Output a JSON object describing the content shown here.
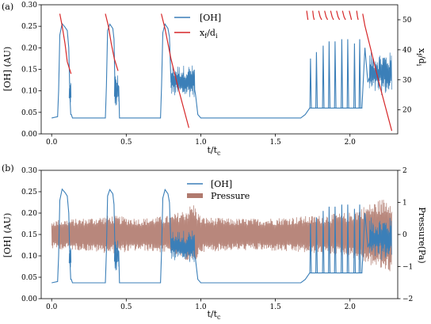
{
  "chart_data": [
    {
      "type": "line",
      "panel_label": "(a)",
      "xlabel": "t/t",
      "xlabel_sub": "c",
      "ylabel": "[OH] (AU)",
      "y2label": "x",
      "y2label_sub": "f",
      "y2label_tail": "/d",
      "y2label_sub2": "i",
      "xlim": [
        -0.07,
        2.32
      ],
      "ylim": [
        0.0,
        0.3
      ],
      "y2lim": [
        12,
        55
      ],
      "xticks": [
        0.0,
        0.5,
        1.0,
        1.5,
        2.0
      ],
      "xtick_labels": [
        "0.0",
        "0.5",
        "1.0",
        "1.5",
        "2.0"
      ],
      "yticks": [
        0.0,
        0.05,
        0.1,
        0.15,
        0.2,
        0.25,
        0.3
      ],
      "ytick_labels": [
        "0.00",
        "0.05",
        "0.10",
        "0.15",
        "0.20",
        "0.25",
        "0.30"
      ],
      "y2ticks": [
        20,
        30,
        40,
        50
      ],
      "y2tick_labels": [
        "20",
        "30",
        "40",
        "50"
      ],
      "legend_position": "top-center",
      "series": [
        {
          "name": "[OH]",
          "color": "#3b7fb8",
          "axis": "left",
          "x": [
            0.0,
            0.04,
            0.047,
            0.055,
            0.07,
            0.09,
            0.105,
            0.115,
            0.122,
            0.128,
            0.132,
            0.14,
            0.36,
            0.367,
            0.375,
            0.39,
            0.41,
            0.418,
            0.425,
            0.43,
            0.45,
            0.455,
            0.46,
            0.73,
            0.737,
            0.745,
            0.76,
            0.78,
            0.79,
            0.8,
            0.84,
            0.88,
            0.92,
            0.95,
            0.965,
            0.98,
            1.0,
            1.6,
            1.67,
            1.7,
            1.73,
            2.08,
            2.1,
            2.12,
            2.14,
            2.28
          ],
          "y": [
            0.037,
            0.04,
            0.1,
            0.23,
            0.256,
            0.248,
            0.24,
            0.2,
            0.09,
            0.045,
            0.045,
            0.037,
            0.037,
            0.11,
            0.24,
            0.255,
            0.245,
            0.22,
            0.1,
            0.12,
            0.11,
            0.037,
            0.037,
            0.037,
            0.11,
            0.235,
            0.255,
            0.245,
            0.225,
            0.12,
            0.115,
            0.12,
            0.125,
            0.12,
            0.09,
            0.045,
            0.037,
            0.037,
            0.037,
            0.045,
            0.06,
            0.06,
            0.2,
            0.12,
            0.14,
            0.14
          ],
          "bursts": [
            {
              "start": 0.117,
              "end": 0.13,
              "low": 0.07,
              "high": 0.12
            },
            {
              "start": 0.42,
              "end": 0.45,
              "low": 0.06,
              "high": 0.14
            },
            {
              "start": 0.8,
              "end": 0.96,
              "low": 0.085,
              "high": 0.16
            },
            {
              "start": 2.13,
              "end": 2.28,
              "low": 0.09,
              "high": 0.19
            }
          ],
          "spikes": [
            {
              "x": 1.735,
              "h": 0.175
            },
            {
              "x": 1.775,
              "h": 0.19
            },
            {
              "x": 1.82,
              "h": 0.205
            },
            {
              "x": 1.86,
              "h": 0.215
            },
            {
              "x": 1.9,
              "h": 0.215
            },
            {
              "x": 1.945,
              "h": 0.22
            },
            {
              "x": 1.985,
              "h": 0.22
            },
            {
              "x": 2.03,
              "h": 0.21
            },
            {
              "x": 2.065,
              "h": 0.22
            }
          ]
        },
        {
          "name": "x",
          "name_sub": "f",
          "name_tail": "/d",
          "name_sub2": "i",
          "color": "#d62728",
          "axis": "right",
          "segments": [
            {
              "x": [
                0.055,
                0.07,
                0.09,
                0.105,
                0.13
              ],
              "y": [
                52,
                48,
                42,
                36,
                32
              ]
            },
            {
              "x": [
                0.36,
                0.38,
                0.4,
                0.42,
                0.445
              ],
              "y": [
                52,
                48,
                42,
                37,
                33
              ]
            },
            {
              "x": [
                0.735,
                0.76,
                0.8,
                0.85,
                0.92
              ],
              "y": [
                52,
                47,
                37,
                27,
                14
              ]
            },
            {
              "x": [
                1.71,
                1.715,
                1.718
              ],
              "y": [
                53,
                51,
                50
              ]
            },
            {
              "x": [
                1.75,
                1.755,
                1.76
              ],
              "y": [
                53,
                51,
                50
              ]
            },
            {
              "x": [
                1.79,
                1.8,
                1.81
              ],
              "y": [
                53,
                51,
                50
              ]
            },
            {
              "x": [
                1.83,
                1.84,
                1.85
              ],
              "y": [
                53,
                51,
                50
              ]
            },
            {
              "x": [
                1.87,
                1.88,
                1.89
              ],
              "y": [
                53,
                51,
                50
              ]
            },
            {
              "x": [
                1.91,
                1.92,
                1.93
              ],
              "y": [
                53,
                51,
                50
              ]
            },
            {
              "x": [
                1.95,
                1.96,
                1.97
              ],
              "y": [
                53,
                51,
                50
              ]
            },
            {
              "x": [
                1.995,
                2.005,
                2.01
              ],
              "y": [
                53,
                51,
                50
              ]
            },
            {
              "x": [
                2.045,
                2.05,
                2.055
              ],
              "y": [
                53,
                51,
                50
              ]
            },
            {
              "x": [
                2.085,
                2.1,
                2.15,
                2.2,
                2.28
              ],
              "y": [
                52,
                48,
                38,
                28,
                13
              ]
            }
          ]
        }
      ]
    },
    {
      "type": "line",
      "panel_label": "(b)",
      "xlabel": "t/t",
      "xlabel_sub": "c",
      "ylabel": "[OH] (AU)",
      "y2label": "Pressure(Pa)",
      "xlim": [
        -0.07,
        2.32
      ],
      "ylim": [
        0.0,
        0.3
      ],
      "y2lim": [
        -2,
        2
      ],
      "xticks": [
        0.0,
        0.5,
        1.0,
        1.5,
        2.0
      ],
      "xtick_labels": [
        "0.0",
        "0.5",
        "1.0",
        "1.5",
        "2.0"
      ],
      "yticks": [
        0.0,
        0.05,
        0.1,
        0.15,
        0.2,
        0.25,
        0.3
      ],
      "ytick_labels": [
        "0.00",
        "0.05",
        "0.10",
        "0.15",
        "0.20",
        "0.25",
        "0.30"
      ],
      "y2ticks": [
        -2,
        -1,
        0,
        1,
        2
      ],
      "y2tick_labels": [
        "−2",
        "−1",
        "0",
        "1",
        "2"
      ],
      "legend_position": "top-center",
      "series": [
        {
          "name": "[OH]",
          "color": "#3b7fb8",
          "axis": "left",
          "same_as_panel_a": true
        },
        {
          "name": "Pressure",
          "color": "#b07a6e",
          "axis": "right",
          "envelope_x": [
            0.0,
            0.2,
            0.4,
            0.6,
            0.8,
            0.9,
            0.95,
            1.0,
            1.2,
            1.4,
            1.6,
            1.8,
            2.0,
            2.2,
            2.28
          ],
          "envelope_amp": [
            0.45,
            0.5,
            0.6,
            0.5,
            0.6,
            0.8,
            1.0,
            0.55,
            0.5,
            0.5,
            0.55,
            0.6,
            0.7,
            1.1,
            1.2
          ]
        }
      ]
    }
  ]
}
